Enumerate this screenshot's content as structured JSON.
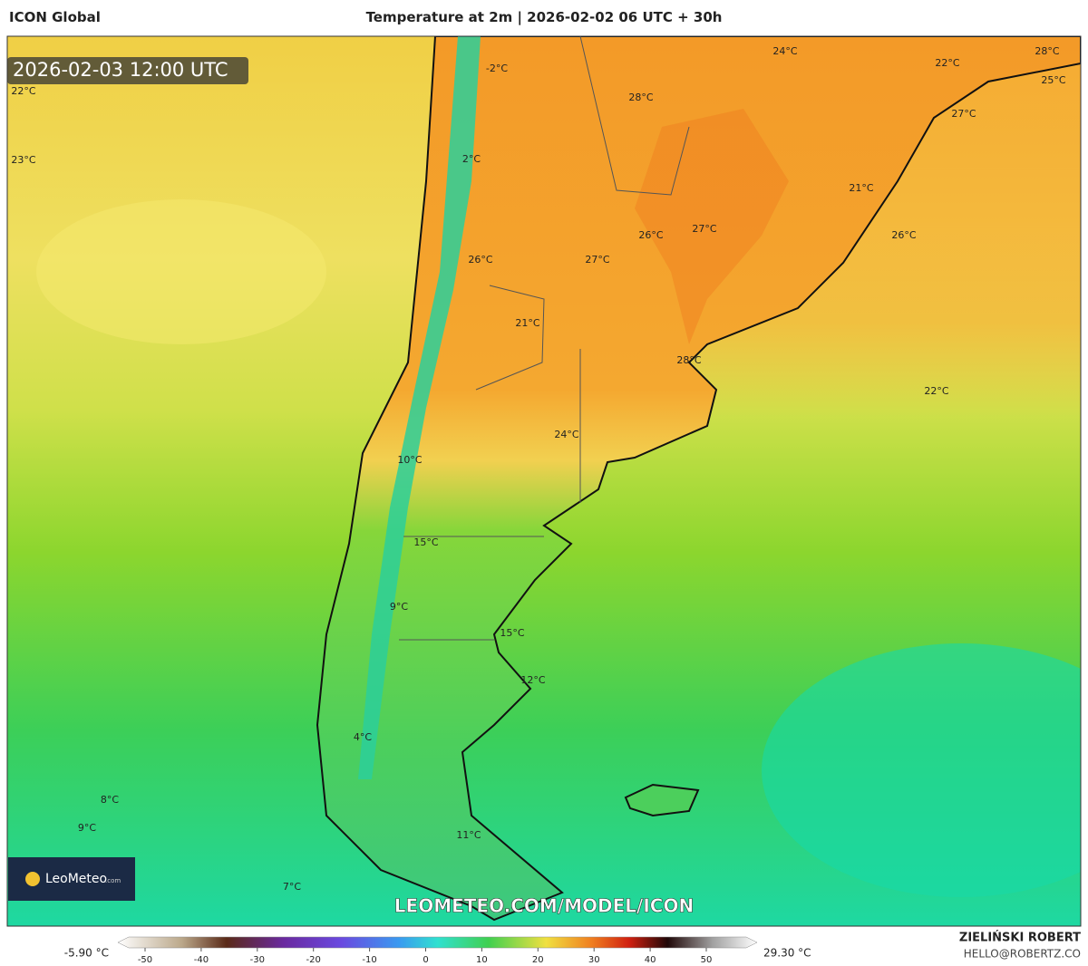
{
  "header": {
    "model": "ICON Global",
    "title": "Temperature at 2m | 2026-02-02 06 UTC + 30h"
  },
  "valid_time": "2026-02-03 12:00 UTC",
  "map_labels": [
    "22°C",
    "23°C",
    "-2°C",
    "2°C",
    "28°C",
    "24°C",
    "22°C",
    "28°C",
    "25°C",
    "27°C",
    "21°C",
    "26°C",
    "27°C",
    "26°C",
    "26°C",
    "27°C",
    "21°C",
    "28°C",
    "22°C",
    "24°C",
    "10°C",
    "15°C",
    "9°C",
    "15°C",
    "12°C",
    "4°C",
    "8°C",
    "9°C",
    "11°C",
    "7°C"
  ],
  "logo": {
    "name": "LeoMeteo",
    "suffix": ".com"
  },
  "watermark": "LEOMETEO.COM/MODEL/ICON",
  "colorbar": {
    "min_label": "-5.90 °C",
    "max_label": "29.30 °C",
    "ticks": [
      -50,
      -40,
      -30,
      -20,
      -10,
      0,
      10,
      20,
      30,
      40,
      50
    ]
  },
  "credits": {
    "author": "ZIELIŃSKI ROBERT",
    "email": "HELLO@ROBERTZ.CO"
  }
}
